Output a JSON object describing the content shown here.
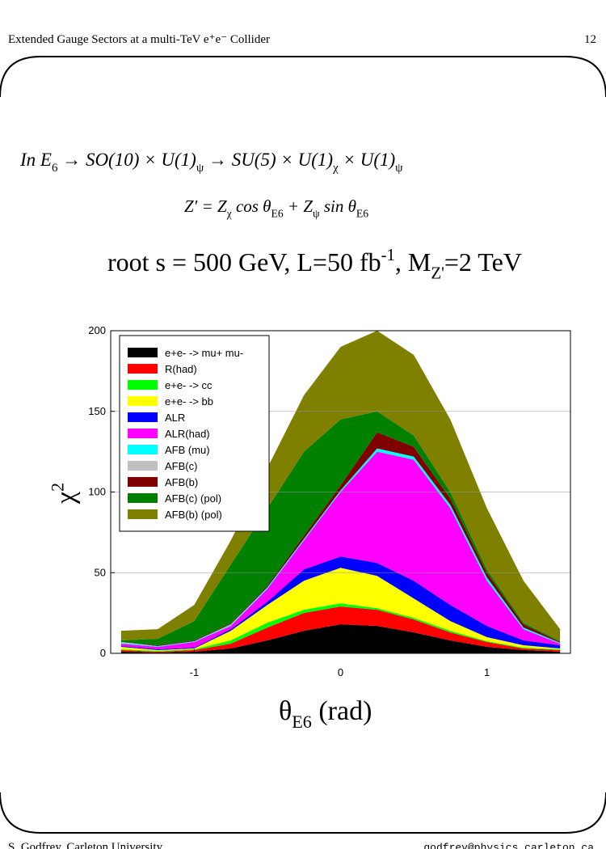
{
  "header": {
    "title": "Extended Gauge Sectors at a multi-TeV e⁺e⁻ Collider",
    "page": "12"
  },
  "formula1": [
    {
      "text": "In E"
    },
    {
      "sub": "6"
    },
    {
      "text": " → SO(10) × U(1)"
    },
    {
      "sub": "ψ"
    },
    {
      "text": " → SU(5) × U(1)"
    },
    {
      "sub": "χ"
    },
    {
      "text": " × U(1)"
    },
    {
      "sub": "ψ"
    }
  ],
  "formula2": [
    {
      "text": "Z′ = Z"
    },
    {
      "sub": "χ"
    },
    {
      "text": " cos θ"
    },
    {
      "sub": "E6"
    },
    {
      "text": " + Z"
    },
    {
      "sub": "ψ"
    },
    {
      "text": " sin θ"
    },
    {
      "sub": "E6"
    }
  ],
  "conditions": [
    {
      "text": "root s = 500 GeV, L=50 fb"
    },
    {
      "sup": "-1"
    },
    {
      "text": ",  M"
    },
    {
      "sub": "Z'"
    },
    {
      "text": "=2 TeV"
    }
  ],
  "footer": {
    "left": "S. Godfrey, Carleton University",
    "right": "godfrey@physics.carleton.ca"
  },
  "chart_data": {
    "type": "stacked_area",
    "xlabel": [
      {
        "text": "θ"
      },
      {
        "sub": "E6"
      },
      {
        "text": "   (rad)"
      }
    ],
    "ylabel": [
      {
        "text": "χ"
      },
      {
        "sup": "2"
      }
    ],
    "x": [
      -1.5,
      -1.25,
      -1,
      -0.75,
      -0.5,
      -0.25,
      0,
      0.25,
      0.5,
      0.75,
      1,
      1.25,
      1.5
    ],
    "xlim": [
      -1.571,
      1.571
    ],
    "xticks": [
      -1,
      0,
      1
    ],
    "ylim": [
      0,
      200
    ],
    "yticks": [
      0,
      50,
      100,
      150,
      200
    ],
    "grid": true,
    "legend": "upper left",
    "series": [
      {
        "name": "e+e- -> mu+ mu-",
        "color": "#000000",
        "values": [
          1,
          0.5,
          1,
          3,
          8,
          14,
          18,
          17,
          13,
          8,
          4,
          2,
          1
        ]
      },
      {
        "name": "R(had)",
        "color": "#ff0000",
        "values": [
          1,
          0.5,
          1,
          3,
          8,
          11,
          11,
          10,
          8,
          5,
          3,
          1,
          1
        ]
      },
      {
        "name": "e+e- -> cc",
        "color": "#00ff00",
        "values": [
          0.5,
          0.5,
          0.5,
          2,
          3,
          2,
          2,
          1,
          1,
          1,
          0.5,
          0.5,
          0.5
        ]
      },
      {
        "name": "e+e- -> bb",
        "color": "#ffff00",
        "values": [
          1.5,
          0.5,
          0.5,
          6,
          11,
          18,
          22,
          20,
          12,
          6,
          2.5,
          1.5,
          0.5
        ]
      },
      {
        "name": "ALR",
        "color": "#0000ff",
        "values": [
          0.5,
          0.5,
          0.5,
          1,
          2,
          7,
          7,
          8,
          11,
          10,
          7,
          3,
          2
        ]
      },
      {
        "name": "ALR(had)",
        "color": "#ff00ff",
        "values": [
          1.5,
          1.5,
          3.5,
          2,
          8,
          18,
          40,
          69,
          75,
          60,
          28,
          7,
          1
        ]
      },
      {
        "name": "AFB (mu)",
        "color": "#00ffff",
        "values": [
          0.5,
          0.5,
          0.5,
          0.5,
          1,
          1,
          1,
          2,
          2,
          2,
          2,
          1,
          0.5
        ]
      },
      {
        "name": "AFB(c)",
        "color": "#c0c0c0",
        "values": [
          0.5,
          0,
          0,
          0.5,
          0,
          0,
          0,
          0,
          0,
          0,
          0,
          0,
          0
        ]
      },
      {
        "name": "AFB(b)",
        "color": "#800000",
        "values": [
          0,
          0.5,
          0.5,
          0.5,
          1,
          2,
          3,
          10,
          6,
          4,
          3,
          2,
          0.5
        ]
      },
      {
        "name": "AFB(c) (pol)",
        "color": "#008000",
        "values": [
          1,
          4,
          12,
          36.5,
          48,
          52,
          41,
          13,
          7,
          4,
          2,
          1,
          0.5
        ]
      },
      {
        "name": "AFB(b) (pol)",
        "color": "#808000",
        "values": [
          6,
          6,
          10,
          15,
          25,
          35,
          45,
          50,
          50,
          45,
          38,
          26,
          7.5
        ]
      }
    ]
  }
}
